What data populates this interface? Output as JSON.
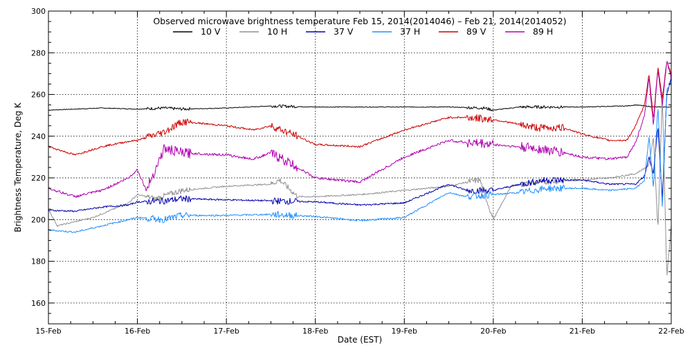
{
  "chart_data": {
    "type": "line",
    "title": "Observed microwave brightness temperature Feb 15, 2014(2014046) – Feb 21, 2014(2014052)",
    "xlabel": "Date (EST)",
    "ylabel": "Brightness Temperature, Deg K",
    "xlim": [
      "15-Feb",
      "22-Feb"
    ],
    "ylim": [
      150,
      300
    ],
    "x_ticks": [
      "15-Feb",
      "16-Feb",
      "17-Feb",
      "18-Feb",
      "19-Feb",
      "20-Feb",
      "21-Feb",
      "22-Feb"
    ],
    "y_ticks": [
      160,
      180,
      200,
      220,
      240,
      260,
      280,
      300
    ],
    "grid": true,
    "legend_position": "top-center",
    "series": [
      {
        "name": "10 V",
        "color": "#000000",
        "x": [
          0,
          0.3,
          0.6,
          1.0,
          1.3,
          1.5,
          2.0,
          2.5,
          3.0,
          3.5,
          4.0,
          4.5,
          4.9,
          5.0,
          5.3,
          5.6,
          6.0,
          6.5,
          6.6,
          6.8,
          7.0
        ],
        "values": [
          252.5,
          253,
          253.5,
          253,
          253.5,
          253,
          253.5,
          254.5,
          254,
          254,
          254,
          254,
          253.5,
          252.5,
          254,
          254,
          254,
          254.5,
          255,
          254,
          254
        ]
      },
      {
        "name": "10 H",
        "color": "#909090",
        "x": [
          0,
          0.1,
          0.5,
          0.9,
          1.0,
          1.2,
          1.5,
          2.0,
          2.5,
          2.6,
          2.8,
          3.0,
          3.5,
          4.0,
          4.5,
          4.7,
          4.85,
          5.0,
          5.2,
          5.5,
          6.0,
          6.3,
          6.6,
          6.75,
          6.8,
          6.85,
          6.9,
          6.95,
          7.0
        ],
        "values": [
          205,
          197,
          201,
          208,
          212,
          210,
          214,
          216,
          217,
          219,
          211,
          211,
          212,
          214,
          216,
          218,
          219,
          200,
          216,
          218,
          219,
          220,
          222,
          226,
          240,
          195,
          260,
          172,
          197
        ]
      },
      {
        "name": "37 V",
        "color": "#0000b0",
        "x": [
          0,
          0.3,
          0.6,
          0.9,
          1.0,
          1.3,
          1.5,
          2.0,
          2.5,
          3.0,
          3.5,
          4.0,
          4.5,
          4.7,
          5.0,
          5.3,
          5.6,
          6.0,
          6.3,
          6.6,
          6.7,
          6.75,
          6.8,
          6.85,
          6.9,
          6.95,
          7.0
        ],
        "values": [
          204.5,
          204,
          206,
          207,
          208.5,
          209,
          210,
          209.5,
          209,
          208.5,
          207,
          208,
          217,
          214,
          214,
          217,
          219,
          219,
          217,
          217,
          221,
          230,
          222,
          245,
          210,
          260,
          268
        ]
      },
      {
        "name": "37 H",
        "color": "#2090ff",
        "x": [
          0,
          0.3,
          0.6,
          0.9,
          1.0,
          1.3,
          1.5,
          2.0,
          2.5,
          3.0,
          3.5,
          4.0,
          4.5,
          4.7,
          5.0,
          5.3,
          5.6,
          6.0,
          6.3,
          6.6,
          6.7,
          6.75,
          6.8,
          6.85,
          6.9,
          6.95,
          7.0
        ],
        "values": [
          195,
          194,
          197,
          200,
          201,
          200,
          202,
          202,
          202.5,
          201.5,
          199.5,
          201,
          213,
          211,
          212,
          213,
          215,
          215,
          214,
          215,
          219,
          240,
          215,
          255,
          205,
          262,
          266
        ]
      },
      {
        "name": "89 V",
        "color": "#cc0000",
        "x": [
          0,
          0.3,
          0.6,
          0.9,
          1.0,
          1.3,
          1.5,
          2.0,
          2.3,
          2.5,
          2.8,
          3.0,
          3.5,
          4.0,
          4.5,
          4.7,
          5.0,
          5.5,
          5.8,
          6.0,
          6.3,
          6.5,
          6.6,
          6.7,
          6.75,
          6.8,
          6.85,
          6.9,
          6.95,
          7.0
        ],
        "values": [
          235,
          231,
          235,
          237.5,
          238,
          242,
          247,
          245,
          243,
          245,
          240,
          236,
          235,
          243,
          249,
          249,
          248,
          244,
          244,
          241,
          238,
          238,
          245,
          255,
          270,
          248,
          273,
          258,
          276,
          270
        ]
      },
      {
        "name": "89 H",
        "color": "#b000b0",
        "x": [
          0,
          0.3,
          0.6,
          0.9,
          1.0,
          1.1,
          1.3,
          1.5,
          2.0,
          2.3,
          2.5,
          2.8,
          3.0,
          3.5,
          4.0,
          4.5,
          4.7,
          5.0,
          5.5,
          5.8,
          6.0,
          6.3,
          6.5,
          6.6,
          6.7,
          6.75,
          6.8,
          6.85,
          6.9,
          6.95,
          7.0
        ],
        "values": [
          215,
          211,
          214,
          220,
          224,
          214,
          234,
          232,
          231,
          229,
          232,
          225,
          220,
          218,
          230,
          238,
          237,
          236,
          234,
          232,
          230,
          229,
          230,
          237,
          250,
          268,
          245,
          272,
          255,
          276,
          268
        ]
      }
    ]
  }
}
